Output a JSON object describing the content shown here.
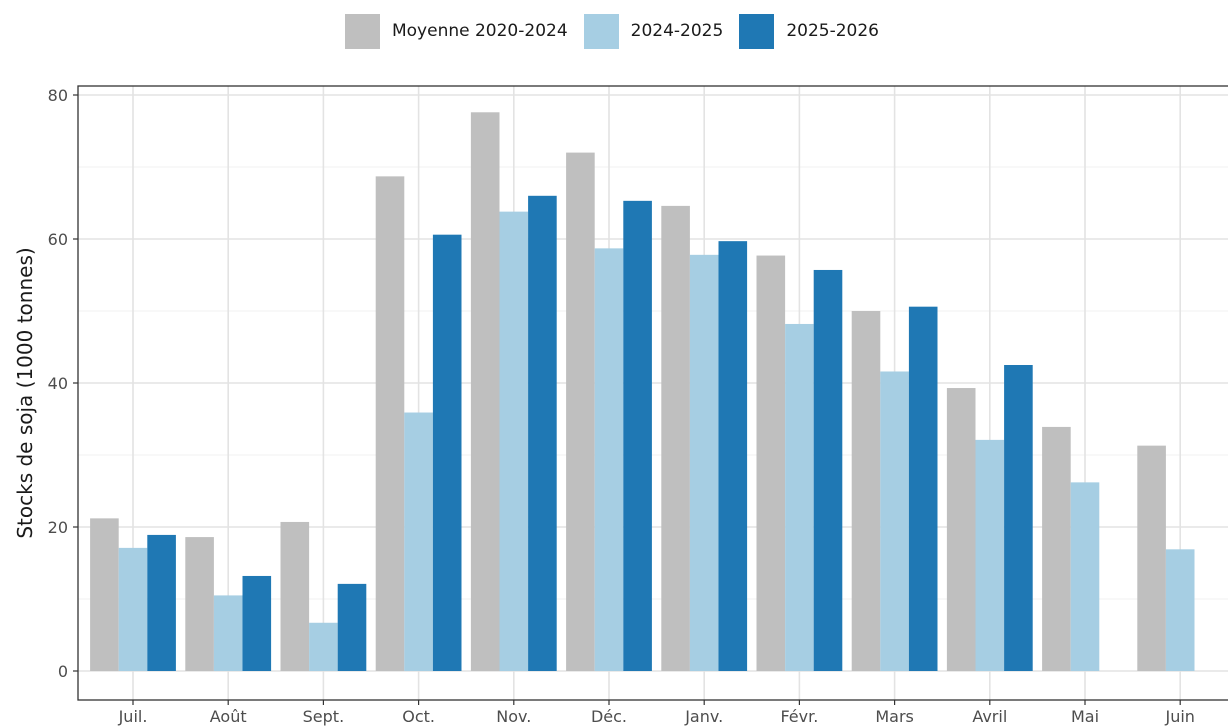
{
  "chart_data": {
    "type": "bar",
    "title": "",
    "xlabel": "",
    "ylabel": "Stocks de soja (1000 tonnes)",
    "ylim": [
      0,
      80
    ],
    "yticks": [
      0,
      20,
      40,
      60,
      80
    ],
    "grid": true,
    "legend_position": "top-center",
    "categories": [
      "Juil.",
      "Août",
      "Sept.",
      "Oct.",
      "Nov.",
      "Déc.",
      "Janv.",
      "Févr.",
      "Mars",
      "Avril",
      "Mai",
      "Juin"
    ],
    "series": [
      {
        "name": "Moyenne 2020-2024",
        "color": "#bfbfbf",
        "values": [
          21.2,
          18.6,
          20.7,
          68.7,
          77.6,
          72.0,
          64.6,
          57.7,
          50.0,
          39.3,
          33.9,
          31.3
        ]
      },
      {
        "name": "2024-2025",
        "color": "#a6cee3",
        "values": [
          17.1,
          10.5,
          6.7,
          35.9,
          63.8,
          58.7,
          57.8,
          48.2,
          41.6,
          32.1,
          26.2,
          16.9
        ]
      },
      {
        "name": "2025-2026",
        "color": "#1f78b4",
        "values": [
          18.9,
          13.2,
          12.1,
          60.6,
          66.0,
          65.3,
          59.7,
          55.7,
          50.6,
          42.5,
          null,
          null
        ]
      }
    ]
  }
}
